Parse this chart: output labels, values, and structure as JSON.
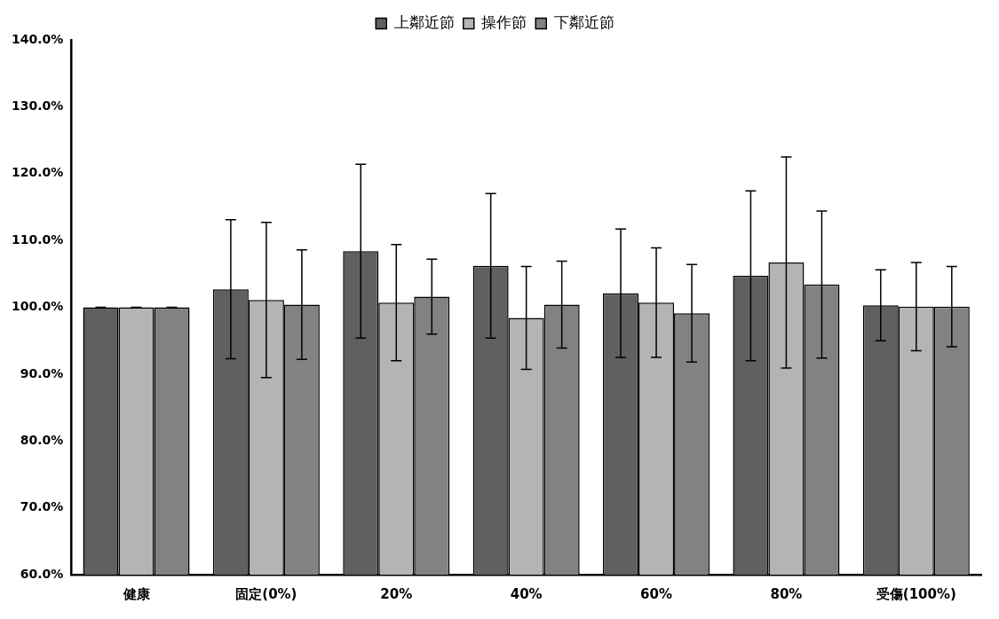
{
  "chart_data": {
    "type": "bar",
    "categories": [
      "健康",
      "固定(0%)",
      "20%",
      "40%",
      "60%",
      "80%",
      "受傷(100%)"
    ],
    "series": [
      {
        "name": "上鄰近節",
        "color": "#606060",
        "values": [
          100,
          102.7,
          108.4,
          106.2,
          102.1,
          104.7,
          100.3
        ],
        "errors": [
          0,
          10.4,
          13,
          10.8,
          9.6,
          12.7,
          5.3
        ]
      },
      {
        "name": "操作節",
        "color": "#b4b4b4",
        "values": [
          100,
          101.1,
          100.7,
          98.4,
          100.7,
          106.7,
          100.1
        ],
        "errors": [
          0,
          11.6,
          8.7,
          7.7,
          8.2,
          15.8,
          6.6
        ]
      },
      {
        "name": "下鄰近節",
        "color": "#828282",
        "values": [
          100,
          100.4,
          101.6,
          100.4,
          99.1,
          103.4,
          100.1
        ],
        "errors": [
          0,
          8.2,
          5.6,
          6.5,
          7.3,
          11,
          6
        ]
      }
    ],
    "ylim": [
      60,
      140
    ],
    "yticks": [
      {
        "value": 60,
        "label": "60.0%"
      },
      {
        "value": 70,
        "label": "70.0%"
      },
      {
        "value": 80,
        "label": "80.0%"
      },
      {
        "value": 90,
        "label": "90.0%"
      },
      {
        "value": 100,
        "label": "100.0%"
      },
      {
        "value": 110,
        "label": "110.0%"
      },
      {
        "value": 120,
        "label": "120.0%"
      },
      {
        "value": 130,
        "label": "130.0%"
      },
      {
        "value": 140,
        "label": "140.0%"
      }
    ],
    "grid": false,
    "legend": "top"
  }
}
